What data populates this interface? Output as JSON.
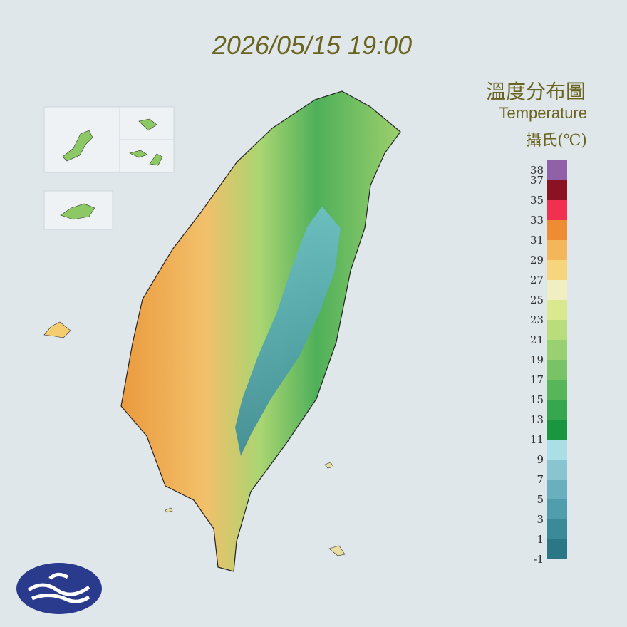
{
  "timestamp": "2026/05/15 19:00",
  "legend": {
    "title": "溫度分布圖",
    "subtitle": "Temperature",
    "unit": "攝氏(℃)",
    "ticks": [
      38,
      37,
      35,
      33,
      31,
      29,
      27,
      25,
      23,
      21,
      19,
      17,
      15,
      13,
      11,
      9,
      7,
      5,
      3,
      1,
      -1
    ],
    "range": [
      -1,
      39
    ],
    "colors": [
      "#2b7785",
      "#3a8a9a",
      "#4f9dad",
      "#69b0bf",
      "#88c5d1",
      "#aadfe6",
      "#1a9641",
      "#38a64e",
      "#58b65a",
      "#77c366",
      "#98d072",
      "#b9dc7c",
      "#dbe98e",
      "#efefc2",
      "#f5d67c",
      "#f3b65a",
      "#ee8c34",
      "#f0304e",
      "#8a1222",
      "#9060a8"
    ]
  }
}
